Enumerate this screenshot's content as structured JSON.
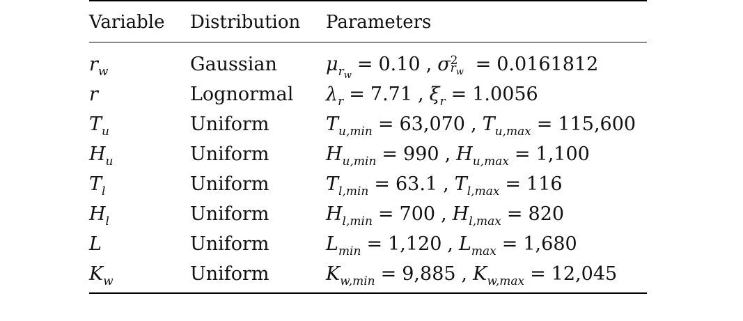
{
  "table": {
    "headers": {
      "variable": "Variable",
      "distribution": "Distribution",
      "parameters": "Parameters"
    },
    "rows": [
      {
        "variable": {
          "base": "r",
          "sub": "w"
        },
        "distribution": "Gaussian",
        "p1": {
          "base": "μ",
          "sub": "r",
          "sub2": "w",
          "value": "0.10"
        },
        "p2": {
          "base": "σ",
          "sup": "2",
          "sub": "r",
          "sub2": "w",
          "value": "0.0161812"
        }
      },
      {
        "variable": {
          "base": "r",
          "sub": ""
        },
        "distribution": "Lognormal",
        "p1": {
          "base": "λ",
          "sub": "r",
          "value": "7.71"
        },
        "p2": {
          "base": "ξ",
          "sub": "r",
          "value": "1.0056"
        }
      },
      {
        "variable": {
          "base": "T",
          "sub": "u"
        },
        "distribution": "Uniform",
        "p1": {
          "base": "T",
          "sub": "u,min",
          "value": "63,070"
        },
        "p2": {
          "base": "T",
          "sub": "u,max",
          "value": "115,600"
        }
      },
      {
        "variable": {
          "base": "H",
          "sub": "u"
        },
        "distribution": "Uniform",
        "p1": {
          "base": "H",
          "sub": "u,min",
          "value": "990"
        },
        "p2": {
          "base": "H",
          "sub": "u,max",
          "value": "1,100"
        }
      },
      {
        "variable": {
          "base": "T",
          "sub": "l"
        },
        "distribution": "Uniform",
        "p1": {
          "base": "T",
          "sub": "l,min",
          "value": "63.1"
        },
        "p2": {
          "base": "T",
          "sub": "l,max",
          "value": "116"
        }
      },
      {
        "variable": {
          "base": "H",
          "sub": "l"
        },
        "distribution": "Uniform",
        "p1": {
          "base": "H",
          "sub": "l,min",
          "value": "700"
        },
        "p2": {
          "base": "H",
          "sub": "l,max",
          "value": "820"
        }
      },
      {
        "variable": {
          "base": "L",
          "sub": ""
        },
        "distribution": "Uniform",
        "p1": {
          "base": "L",
          "sub": "min",
          "value": "1,120"
        },
        "p2": {
          "base": "L",
          "sub": "max",
          "value": "1,680"
        }
      },
      {
        "variable": {
          "base": "K",
          "sub": "w"
        },
        "distribution": "Uniform",
        "p1": {
          "base": "K",
          "sub": "w,min",
          "value": "9,885"
        },
        "p2": {
          "base": "K",
          "sub": "w,max",
          "value": "12,045"
        }
      }
    ]
  }
}
